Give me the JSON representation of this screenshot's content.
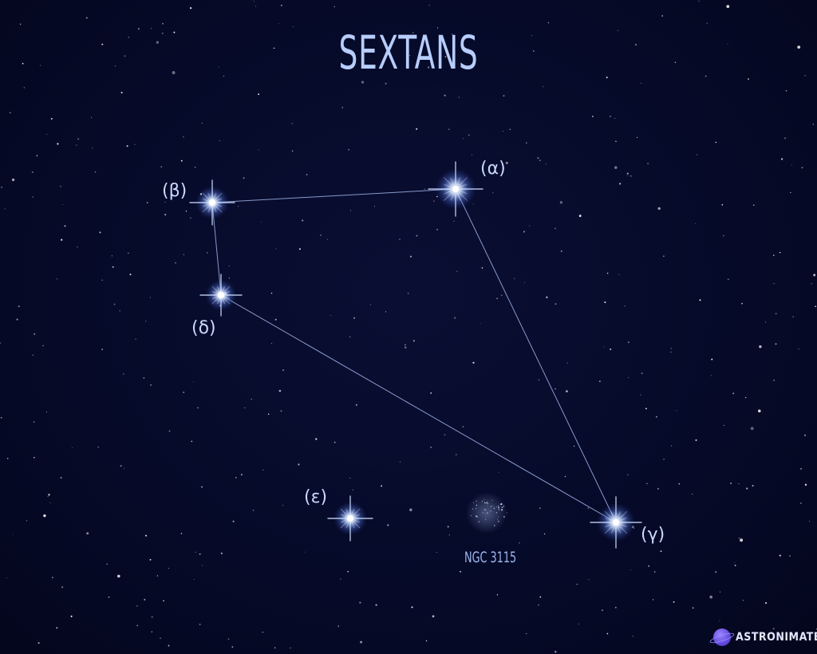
{
  "map": {
    "title": "SEXTANS",
    "stars": [
      {
        "key": "alpha",
        "label": "(α)"
      },
      {
        "key": "beta",
        "label": "(β)"
      },
      {
        "key": "gamma",
        "label": "(γ)"
      },
      {
        "key": "delta",
        "label": "(δ)"
      },
      {
        "key": "epsilon",
        "label": "(ε)"
      }
    ],
    "lines": [
      [
        "beta",
        "alpha"
      ],
      [
        "beta",
        "delta"
      ],
      [
        "delta",
        "gamma"
      ],
      [
        "alpha",
        "gamma"
      ]
    ],
    "deep_sky_object": {
      "label": "NGC 3115"
    },
    "colors": {
      "background": "#060a28",
      "line": "#9fb4e8",
      "label": "#c9d9ff",
      "title": "#b7cdfc"
    }
  },
  "brand": {
    "name": "ASTRONIMATE",
    "icon": "planet-icon"
  }
}
